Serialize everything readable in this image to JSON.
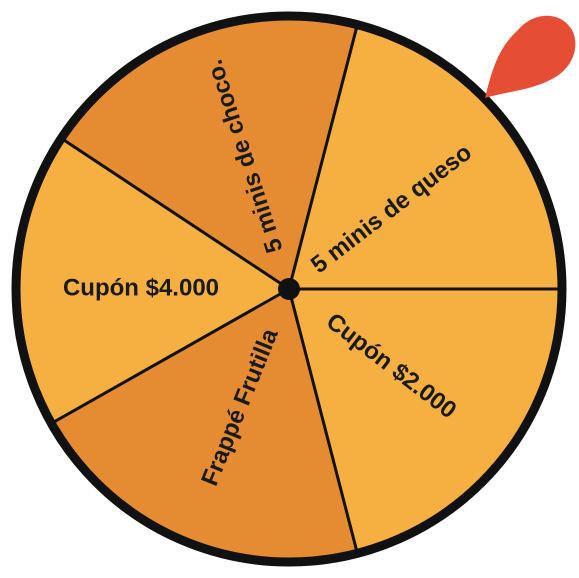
{
  "wheel": {
    "segments": [
      {
        "label": "5 minis de queso",
        "color": "#f5b041"
      },
      {
        "label": "Cupón $2.000",
        "color": "#f5b041"
      },
      {
        "label": "Frappé Frutilla",
        "color": "#e58c33"
      },
      {
        "label": "Cupón $4.000",
        "color": "#f5b041"
      },
      {
        "label": "5 minis de choco.",
        "color": "#e58c33"
      }
    ],
    "pointer_color": "#e54d35",
    "rim_color": "#111111",
    "hub_color": "#111111"
  }
}
